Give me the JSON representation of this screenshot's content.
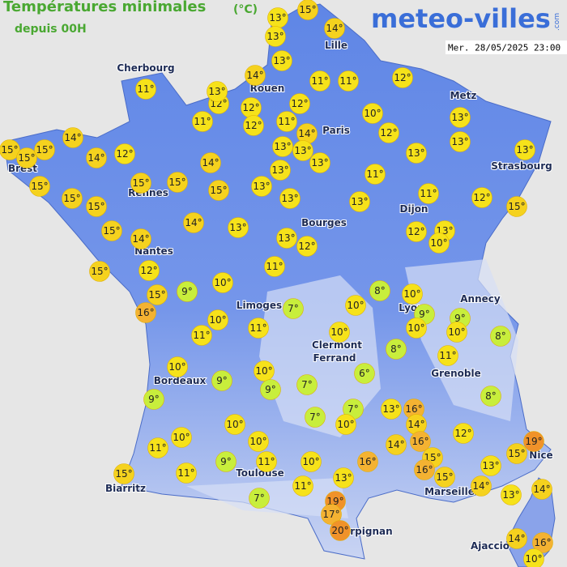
{
  "header": {
    "title": "Températures minimales",
    "unit": "(°C)",
    "subtitle": "depuis 00H",
    "brand": "meteo-villes",
    "brand_suffix": ".com",
    "timestamp": "Mer. 28/05/2025 23:00"
  },
  "cities": [
    "Cherbourg",
    "Rouen",
    "Paris",
    "Lille",
    "Metz",
    "Strasbourg",
    "Rennes",
    "Brest",
    "Nantes",
    "Bourges",
    "Dijon",
    "Limoges",
    "Lyon",
    "Annecy",
    "Clermont",
    "Ferrand",
    "Grenoble",
    "Bordeaux",
    "Toulouse",
    "Biarritz",
    "Marseille",
    "Nice",
    "Perpignan",
    "Ajaccio"
  ],
  "markers": [
    {
      "value": 15,
      "label": "15°"
    },
    {
      "value": 13,
      "label": "13°"
    },
    {
      "value": 14,
      "label": "14°"
    },
    {
      "value": 13,
      "label": "13°"
    },
    {
      "value": 13,
      "label": "13°"
    },
    {
      "value": 14,
      "label": "14°"
    },
    {
      "value": 11,
      "label": "11°"
    },
    {
      "value": 12,
      "label": "12°"
    },
    {
      "value": 13,
      "label": "13°"
    },
    {
      "value": 11,
      "label": "11°"
    },
    {
      "value": 11,
      "label": "11°"
    },
    {
      "value": 12,
      "label": "12°"
    },
    {
      "value": 12,
      "label": "12°"
    },
    {
      "value": 12,
      "label": "12°"
    },
    {
      "value": 11,
      "label": "11°"
    },
    {
      "value": 12,
      "label": "12°"
    },
    {
      "value": 11,
      "label": "11°"
    },
    {
      "value": 10,
      "label": "10°"
    },
    {
      "value": 14,
      "label": "14°"
    },
    {
      "value": 13,
      "label": "13°"
    },
    {
      "value": 13,
      "label": "13°"
    },
    {
      "value": 12,
      "label": "12°"
    },
    {
      "value": 13,
      "label": "13°"
    },
    {
      "value": 13,
      "label": "13°"
    },
    {
      "value": 13,
      "label": "13°"
    },
    {
      "value": 13,
      "label": "13°"
    },
    {
      "value": 13,
      "label": "13°"
    },
    {
      "value": 14,
      "label": "14°"
    },
    {
      "value": 15,
      "label": "15°"
    },
    {
      "value": 15,
      "label": "15°"
    },
    {
      "value": 15,
      "label": "15°"
    },
    {
      "value": 14,
      "label": "14°"
    },
    {
      "value": 12,
      "label": "12°"
    },
    {
      "value": 14,
      "label": "14°"
    },
    {
      "value": 13,
      "label": "13°"
    },
    {
      "value": 11,
      "label": "11°"
    },
    {
      "value": 15,
      "label": "15°"
    },
    {
      "value": 15,
      "label": "15°"
    },
    {
      "value": 15,
      "label": "15°"
    },
    {
      "value": 15,
      "label": "15°"
    },
    {
      "value": 13,
      "label": "13°"
    },
    {
      "value": 15,
      "label": "15°"
    },
    {
      "value": 15,
      "label": "15°"
    },
    {
      "value": 13,
      "label": "13°"
    },
    {
      "value": 13,
      "label": "13°"
    },
    {
      "value": 11,
      "label": "11°"
    },
    {
      "value": 12,
      "label": "12°"
    },
    {
      "value": 15,
      "label": "15°"
    },
    {
      "value": 15,
      "label": "15°"
    },
    {
      "value": 14,
      "label": "14°"
    },
    {
      "value": 13,
      "label": "13°"
    },
    {
      "value": 14,
      "label": "14°"
    },
    {
      "value": 13,
      "label": "13°"
    },
    {
      "value": 12,
      "label": "12°"
    },
    {
      "value": 12,
      "label": "12°"
    },
    {
      "value": 13,
      "label": "13°"
    },
    {
      "value": 10,
      "label": "10°"
    },
    {
      "value": 15,
      "label": "15°"
    },
    {
      "value": 12,
      "label": "12°"
    },
    {
      "value": 11,
      "label": "11°"
    },
    {
      "value": 15,
      "label": "15°"
    },
    {
      "value": 9,
      "label": "9°"
    },
    {
      "value": 10,
      "label": "10°"
    },
    {
      "value": 8,
      "label": "8°"
    },
    {
      "value": 10,
      "label": "10°"
    },
    {
      "value": 16,
      "label": "16°"
    },
    {
      "value": 7,
      "label": "7°"
    },
    {
      "value": 10,
      "label": "10°"
    },
    {
      "value": 9,
      "label": "9°"
    },
    {
      "value": 9,
      "label": "9°"
    },
    {
      "value": 10,
      "label": "10°"
    },
    {
      "value": 11,
      "label": "11°"
    },
    {
      "value": 11,
      "label": "11°"
    },
    {
      "value": 10,
      "label": "10°"
    },
    {
      "value": 10,
      "label": "10°"
    },
    {
      "value": 10,
      "label": "10°"
    },
    {
      "value": 8,
      "label": "8°"
    },
    {
      "value": 8,
      "label": "8°"
    },
    {
      "value": 11,
      "label": "11°"
    },
    {
      "value": 10,
      "label": "10°"
    },
    {
      "value": 10,
      "label": "10°"
    },
    {
      "value": 6,
      "label": "6°"
    },
    {
      "value": 9,
      "label": "9°"
    },
    {
      "value": 9,
      "label": "9°"
    },
    {
      "value": 7,
      "label": "7°"
    },
    {
      "value": 8,
      "label": "8°"
    },
    {
      "value": 9,
      "label": "9°"
    },
    {
      "value": 7,
      "label": "7°"
    },
    {
      "value": 13,
      "label": "13°"
    },
    {
      "value": 16,
      "label": "16°"
    },
    {
      "value": 7,
      "label": "7°"
    },
    {
      "value": 10,
      "label": "10°"
    },
    {
      "value": 14,
      "label": "14°"
    },
    {
      "value": 12,
      "label": "12°"
    },
    {
      "value": 10,
      "label": "10°"
    },
    {
      "value": 10,
      "label": "10°"
    },
    {
      "value": 10,
      "label": "10°"
    },
    {
      "value": 16,
      "label": "16°"
    },
    {
      "value": 14,
      "label": "14°"
    },
    {
      "value": 19,
      "label": "19°"
    },
    {
      "value": 11,
      "label": "11°"
    },
    {
      "value": 15,
      "label": "15°"
    },
    {
      "value": 9,
      "label": "9°"
    },
    {
      "value": 11,
      "label": "11°"
    },
    {
      "value": 10,
      "label": "10°"
    },
    {
      "value": 16,
      "label": "16°"
    },
    {
      "value": 15,
      "label": "15°"
    },
    {
      "value": 16,
      "label": "16°"
    },
    {
      "value": 13,
      "label": "13°"
    },
    {
      "value": 15,
      "label": "15°"
    },
    {
      "value": 11,
      "label": "11°"
    },
    {
      "value": 13,
      "label": "13°"
    },
    {
      "value": 15,
      "label": "15°"
    },
    {
      "value": 14,
      "label": "14°"
    },
    {
      "value": 11,
      "label": "11°"
    },
    {
      "value": 14,
      "label": "14°"
    },
    {
      "value": 13,
      "label": "13°"
    },
    {
      "value": 19,
      "label": "19°"
    },
    {
      "value": 7,
      "label": "7°"
    },
    {
      "value": 17,
      "label": "17°"
    },
    {
      "value": 20,
      "label": "20°"
    },
    {
      "value": 14,
      "label": "14°"
    },
    {
      "value": 16,
      "label": "16°"
    },
    {
      "value": 10,
      "label": "10°"
    }
  ]
}
